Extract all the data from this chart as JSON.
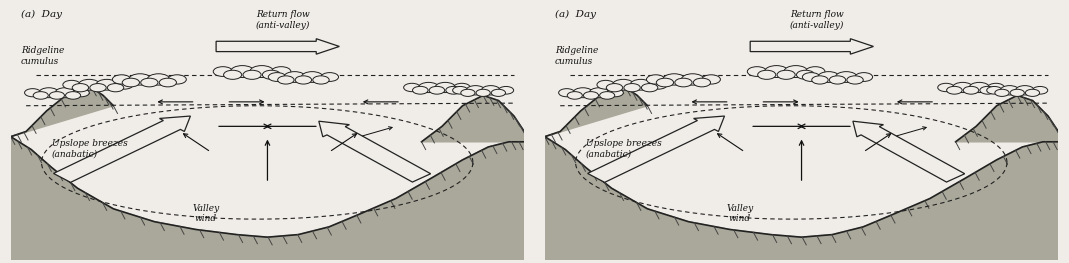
{
  "fig_width": 10.69,
  "fig_height": 2.63,
  "dpi": 100,
  "bg_color": "#f0ede8",
  "diagram_bg": "#f0ede8",
  "left_panel": {
    "label": "(a)  Day",
    "return_flow_text": "Return flow\n(anti-valley)",
    "ridgeline_text": "Ridgeline\ncumulus",
    "upslope_text": "Upslope breezes\n(anabatic)",
    "valley_text": "Valley\nwind"
  },
  "right_panel": {
    "label": "(a)  Day",
    "return_flow_text": "Return flow\n(anti-valley)",
    "ridgeline_text": "Ridgeline\ncumulus",
    "upslope_text": "Upslope breezes\n(anabatic)",
    "valley_text": "Valley\nwind"
  },
  "text_fontsize": 6.5,
  "label_fontsize": 7.5,
  "text_color": "#111111",
  "line_color": "#222222",
  "arrow_color": "#111111",
  "terrain_color": "#888880",
  "terrain_fill": "#aaa89a"
}
